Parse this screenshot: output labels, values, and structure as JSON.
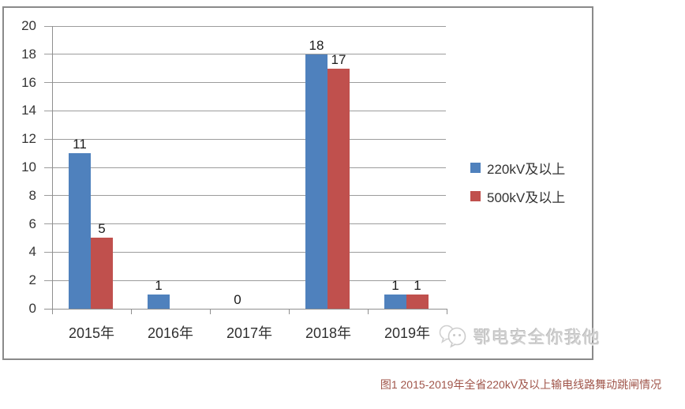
{
  "chart_data": {
    "type": "bar",
    "title": "",
    "categories": [
      "2015年",
      "2016年",
      "2017年",
      "2018年",
      "2019年"
    ],
    "series": [
      {
        "name": "220kV及以上",
        "color": "#4F81BD",
        "values": [
          11,
          1,
          0,
          18,
          1
        ]
      },
      {
        "name": "500kV及以上",
        "color": "#C0504D",
        "values": [
          5,
          null,
          null,
          17,
          1
        ]
      }
    ],
    "ylim": [
      0,
      20
    ],
    "ytick_step": 2,
    "grid": true,
    "legend_position": "right-middle",
    "xlabel": "",
    "ylabel": ""
  },
  "watermark": {
    "icon": "wechat-logo-icon",
    "text": "鄂电安全你我他"
  },
  "caption": {
    "text": "图1  2015-2019年全省220kV及以上输电线路舞动跳闸情况",
    "color": "#A0554A"
  }
}
